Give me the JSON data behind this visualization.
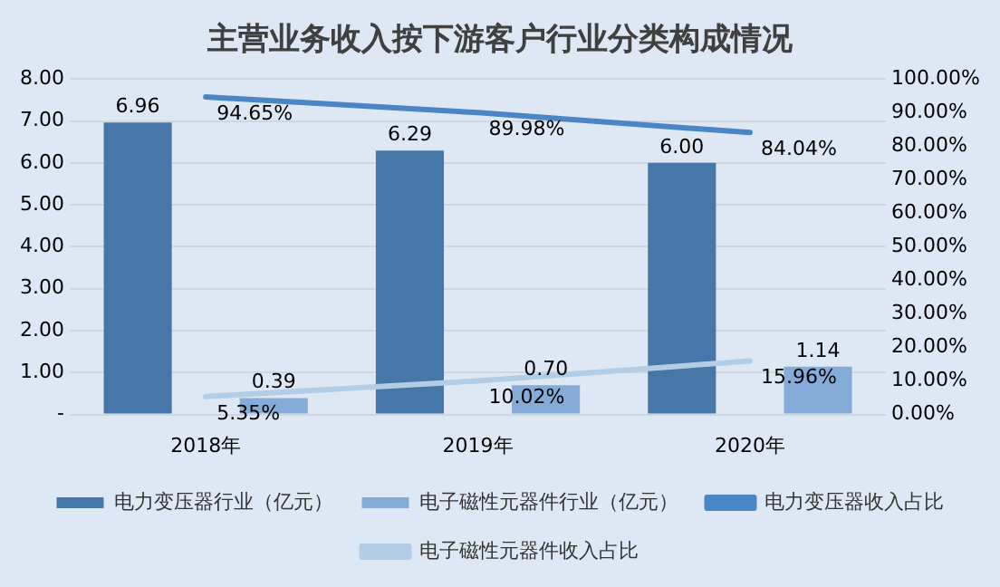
{
  "chart_data": {
    "type": "bar",
    "title": "主营业务收入按下游客户行业分类构成情况",
    "categories": [
      "2018年",
      "2019年",
      "2020年"
    ],
    "series": [
      {
        "name": "电力变压器行业（亿元）",
        "color": "#4677a8",
        "values": [
          6.96,
          6.29,
          6.0
        ],
        "value_labels": [
          "6.96",
          "6.29",
          "6.00"
        ]
      },
      {
        "name": "电子磁性元器件行业（亿元）",
        "color": "#85acd8",
        "values": [
          0.39,
          0.7,
          1.14
        ],
        "value_labels": [
          "0.39",
          "0.70",
          "1.14"
        ]
      },
      {
        "name": "电力变压器收入占比",
        "type": "line",
        "axis": "y2",
        "color": "#4a86c5",
        "values": [
          94.65,
          89.98,
          84.04
        ],
        "value_labels": [
          "94.65%",
          "89.98%",
          "84.04%"
        ]
      },
      {
        "name": "电子磁性元器件收入占比",
        "type": "line",
        "axis": "y2",
        "color": "#b4cde6",
        "values": [
          5.35,
          10.02,
          15.96
        ],
        "value_labels": [
          "5.35%",
          "10.02%",
          "15.96%"
        ]
      }
    ],
    "ylim": [
      0,
      8
    ],
    "yticks": [
      {
        "value": 0,
        "label": "-"
      },
      {
        "value": 1,
        "label": "1.00"
      },
      {
        "value": 2,
        "label": "2.00"
      },
      {
        "value": 3,
        "label": "3.00"
      },
      {
        "value": 4,
        "label": "4.00"
      },
      {
        "value": 5,
        "label": "5.00"
      },
      {
        "value": 6,
        "label": "6.00"
      },
      {
        "value": 7,
        "label": "7.00"
      },
      {
        "value": 8,
        "label": "8.00"
      }
    ],
    "y2lim": [
      0,
      100
    ],
    "y2ticks": [
      {
        "value": 0,
        "label": "0.00%"
      },
      {
        "value": 10,
        "label": "10.00%"
      },
      {
        "value": 20,
        "label": "20.00%"
      },
      {
        "value": 30,
        "label": "30.00%"
      },
      {
        "value": 40,
        "label": "40.00%"
      },
      {
        "value": 50,
        "label": "50.00%"
      },
      {
        "value": 60,
        "label": "60.00%"
      },
      {
        "value": 70,
        "label": "70.00%"
      },
      {
        "value": 80,
        "label": "80.00%"
      },
      {
        "value": 90,
        "label": "90.00%"
      },
      {
        "value": 100,
        "label": "100.00%"
      }
    ],
    "grid": "y",
    "legend": "bottom"
  }
}
